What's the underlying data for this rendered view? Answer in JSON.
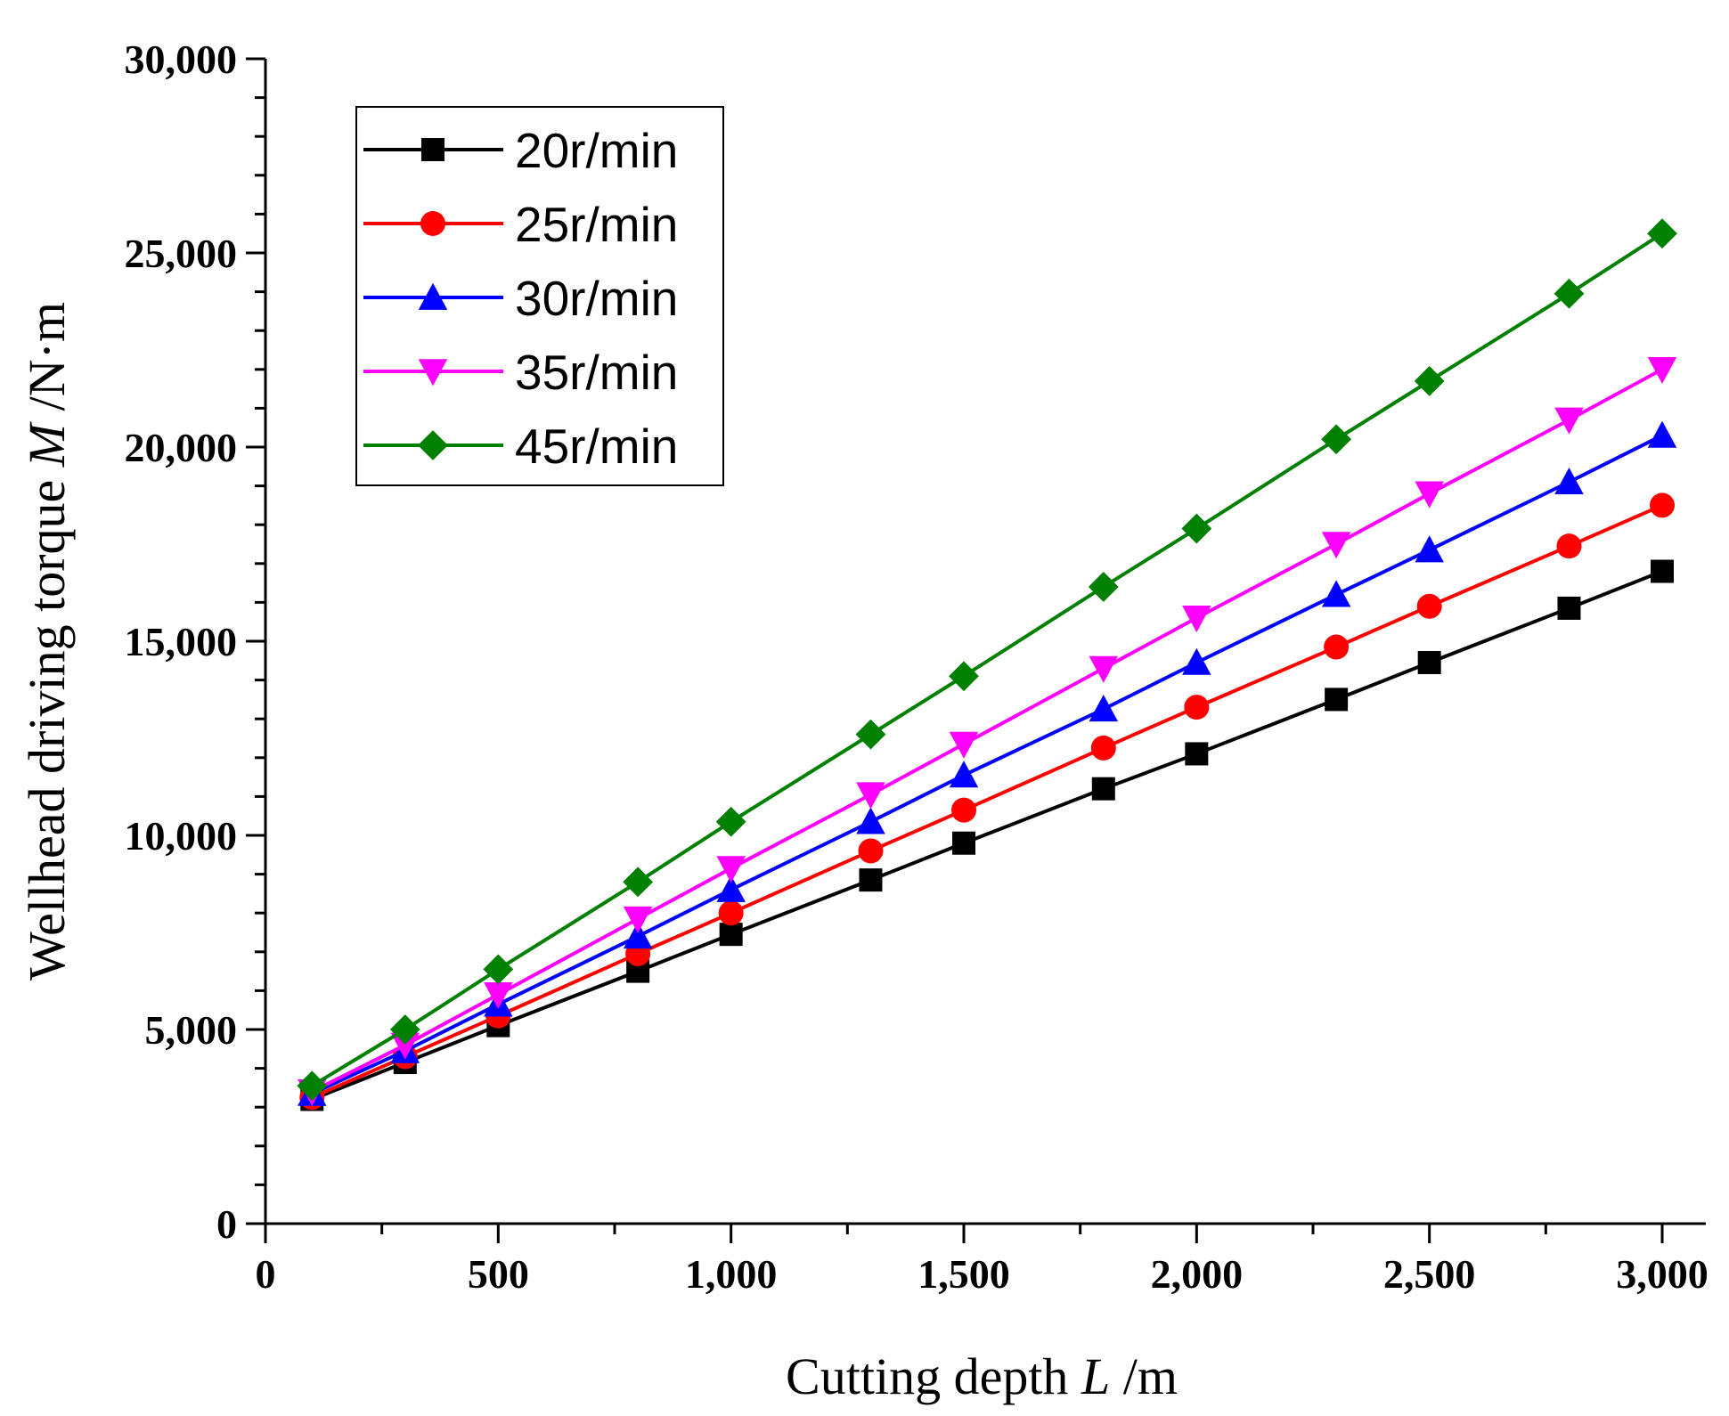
{
  "chart_data": {
    "type": "line",
    "title": "",
    "xlabel": {
      "prefix": "Cutting depth ",
      "var": "L",
      "suffix": " /m"
    },
    "ylabel": {
      "prefix": "Wellhead driving torque ",
      "var": "M",
      "suffix": " /N·m"
    },
    "xlim": [
      0,
      3000
    ],
    "ylim": [
      0,
      30000
    ],
    "xticks": [
      0,
      500,
      1000,
      1500,
      2000,
      2500,
      3000
    ],
    "xtick_labels": [
      "0",
      "500",
      "1,000",
      "1,500",
      "2,000",
      "2,500",
      "3,000"
    ],
    "yticks": [
      0,
      5000,
      10000,
      15000,
      20000,
      25000,
      30000
    ],
    "ytick_labels": [
      "0",
      "5,000",
      "10,000",
      "15,000",
      "20,000",
      "25,000",
      "30,000"
    ],
    "grid": false,
    "legend_position": "top-left",
    "x": [
      100,
      300,
      500,
      800,
      1000,
      1300,
      1500,
      1800,
      2000,
      2300,
      2500,
      2800,
      3000
    ],
    "series": [
      {
        "name": "20r/min",
        "color": "#000000",
        "marker": "square",
        "values": [
          3200,
          4150,
          5100,
          6500,
          7450,
          8850,
          9800,
          11200,
          12100,
          13500,
          14450,
          15850,
          16800
        ]
      },
      {
        "name": "25r/min",
        "color": "#ff0000",
        "marker": "circle",
        "values": [
          3250,
          4300,
          5350,
          6950,
          8000,
          9600,
          10650,
          12250,
          13300,
          14850,
          15900,
          17450,
          18500
        ]
      },
      {
        "name": "30r/min",
        "color": "#0000ff",
        "marker": "triangle-up",
        "values": [
          3350,
          4450,
          5650,
          7400,
          8600,
          10350,
          11550,
          13250,
          14450,
          16200,
          17350,
          19100,
          20300
        ]
      },
      {
        "name": "35r/min",
        "color": "#ff00ff",
        "marker": "triangle-down",
        "values": [
          3400,
          4600,
          5900,
          7850,
          9150,
          11050,
          12350,
          14300,
          15600,
          17500,
          18800,
          20700,
          22000
        ]
      },
      {
        "name": "45r/min",
        "color": "#008000",
        "marker": "diamond",
        "values": [
          3550,
          5000,
          6550,
          8800,
          10350,
          12600,
          14100,
          16400,
          17900,
          20200,
          21700,
          23950,
          25500
        ]
      }
    ]
  }
}
